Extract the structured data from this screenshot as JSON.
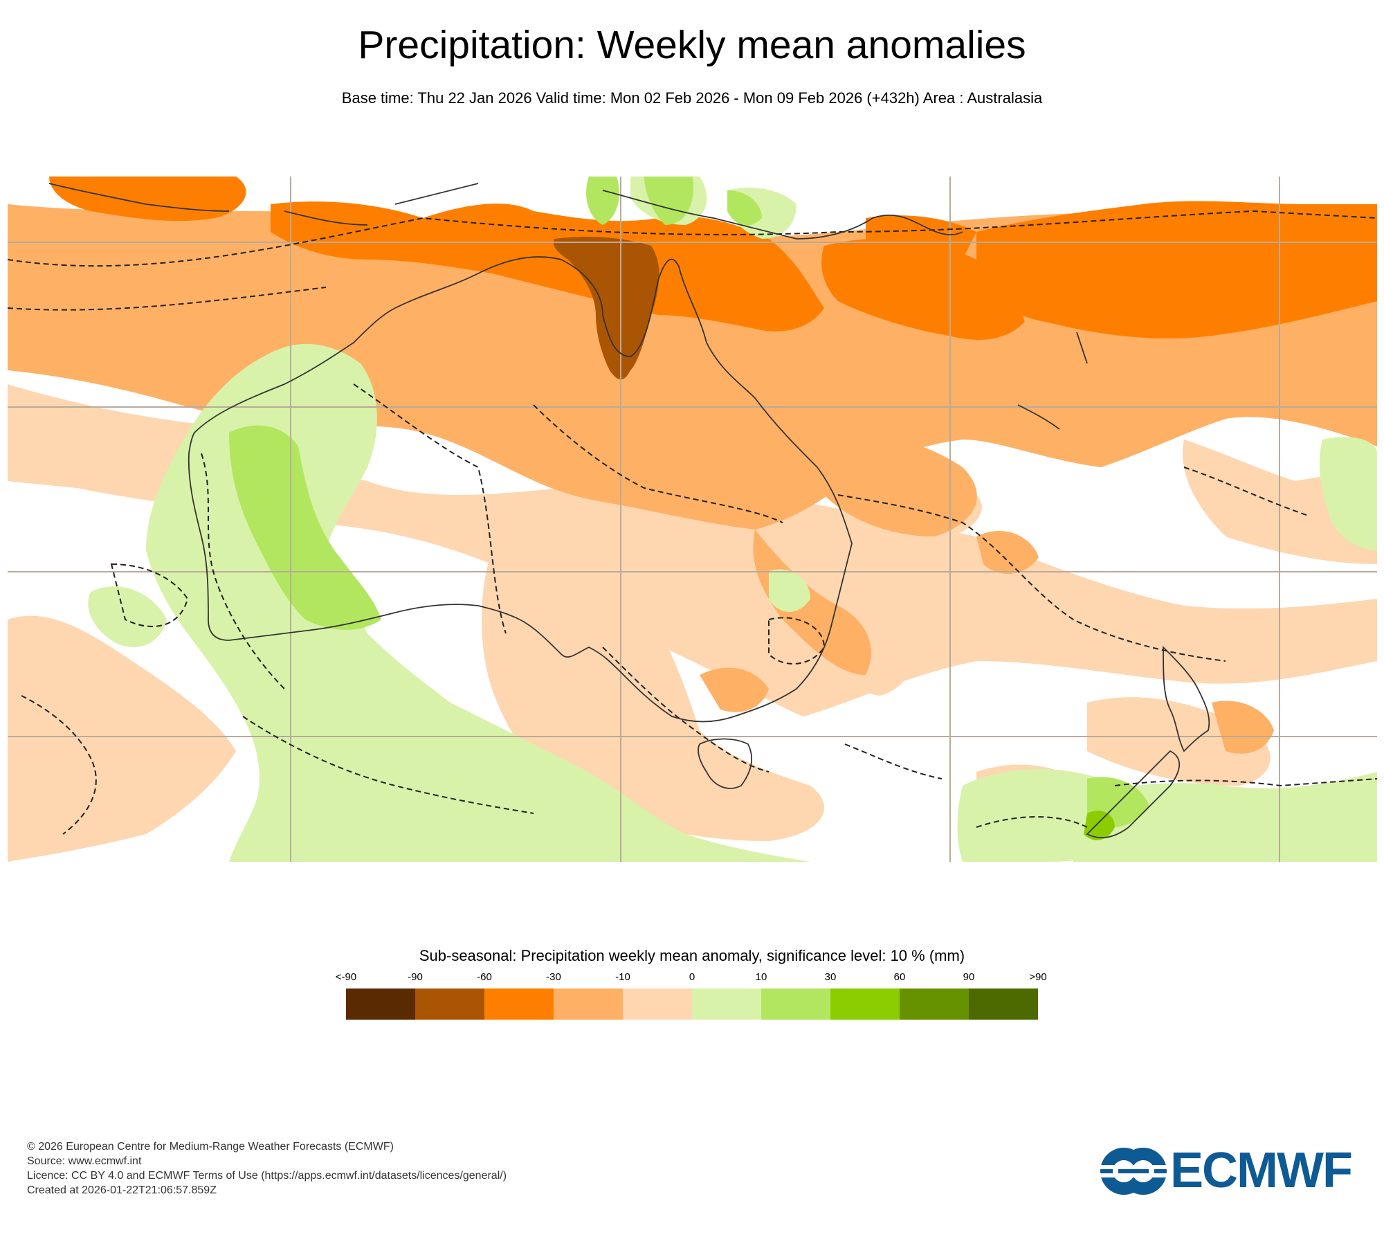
{
  "title": "Precipitation: Weekly mean anomalies",
  "subtitle": "Base time: Thu 22 Jan 2026 Valid time: Mon 02 Feb 2026 - Mon 09 Feb 2026 (+432h) Area : Australasia",
  "legend": {
    "title": "Sub-seasonal: Precipitation weekly mean anomaly, significance level: 10 % (mm)",
    "ticks": [
      "<-90",
      "-90",
      "-60",
      "-30",
      "-10",
      "0",
      "10",
      "30",
      "60",
      "90",
      ">90"
    ],
    "colors": [
      "#5a2a02",
      "#aa5503",
      "#fe7f00",
      "#feb065",
      "#fed6b0",
      "#d8f2a9",
      "#b3e65f",
      "#8bcd00",
      "#669200",
      "#4d6a00"
    ]
  },
  "credits": {
    "line1": "© 2026 European Centre for Medium-Range Weather Forecasts (ECMWF)",
    "line2": "Source: www.ecmwf.int",
    "line3": "Licence: CC BY 4.0 and ECMWF Terms of Use (https://apps.ecmwf.int/datasets/licences/general/)",
    "line4": "Created at 2026-01-22T21:06:57.859Z"
  },
  "logo": {
    "text": "ECMWF"
  }
}
